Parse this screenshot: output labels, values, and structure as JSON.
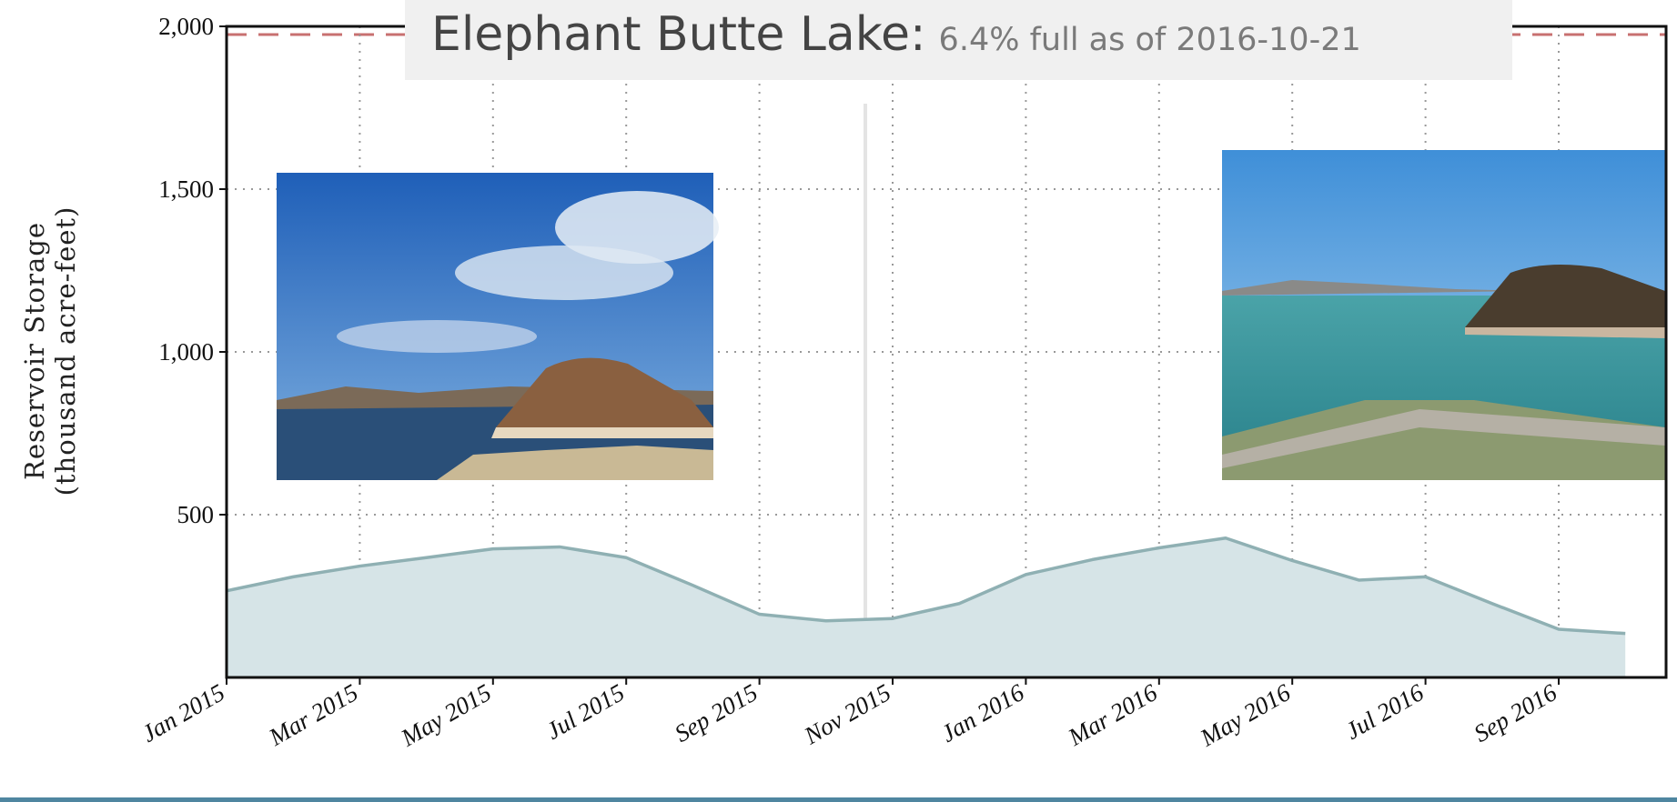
{
  "chart_data": {
    "type": "area",
    "title": "Elephant Butte Lake:",
    "subtitle": "6.4% full as of 2016-10-21",
    "ylabel": [
      "Reservoir Storage",
      "(thousand acre-feet)"
    ],
    "x": [
      "2015-01",
      "2015-02",
      "2015-03",
      "2015-04",
      "2015-05",
      "2015-06",
      "2015-07",
      "2015-08",
      "2015-09",
      "2015-10",
      "2015-11",
      "2015-12",
      "2016-01",
      "2016-02",
      "2016-03",
      "2016-04",
      "2016-05",
      "2016-06",
      "2016-07",
      "2016-08",
      "2016-09",
      "2016-10"
    ],
    "series": [
      {
        "name": "Reservoir Storage",
        "color": "#8fb0b3",
        "fill": "#d6e4e7",
        "values": [
          266,
          309,
          342,
          368,
          395,
          401,
          368,
          283,
          194,
          174,
          181,
          227,
          316,
          362,
          398,
          428,
          359,
          299,
          309,
          227,
          148,
          135
        ]
      }
    ],
    "xlim": [
      "2015-01",
      "2016-10"
    ],
    "xticks": [
      {
        "value": "2015-01",
        "label": "Jan 2015"
      },
      {
        "value": "2015-03",
        "label": "Mar 2015"
      },
      {
        "value": "2015-05",
        "label": "May 2015"
      },
      {
        "value": "2015-07",
        "label": "Jul 2015"
      },
      {
        "value": "2015-09",
        "label": "Sep 2015"
      },
      {
        "value": "2015-11",
        "label": "Nov 2015"
      },
      {
        "value": "2016-01",
        "label": "Jan 2016"
      },
      {
        "value": "2016-03",
        "label": "Mar 2016"
      },
      {
        "value": "2016-05",
        "label": "May 2016"
      },
      {
        "value": "2016-07",
        "label": "Jul 2016"
      },
      {
        "value": "2016-09",
        "label": "Sep 2016"
      }
    ],
    "ylim": [
      0,
      2000
    ],
    "yticks": [
      {
        "value": 500,
        "label": "500"
      },
      {
        "value": 1000,
        "label": "1,000"
      },
      {
        "value": 1500,
        "label": "1,500"
      },
      {
        "value": 2000,
        "label": "2,000"
      }
    ],
    "reference_line": {
      "value": 1975,
      "color": "#c87070"
    },
    "grid": true
  }
}
